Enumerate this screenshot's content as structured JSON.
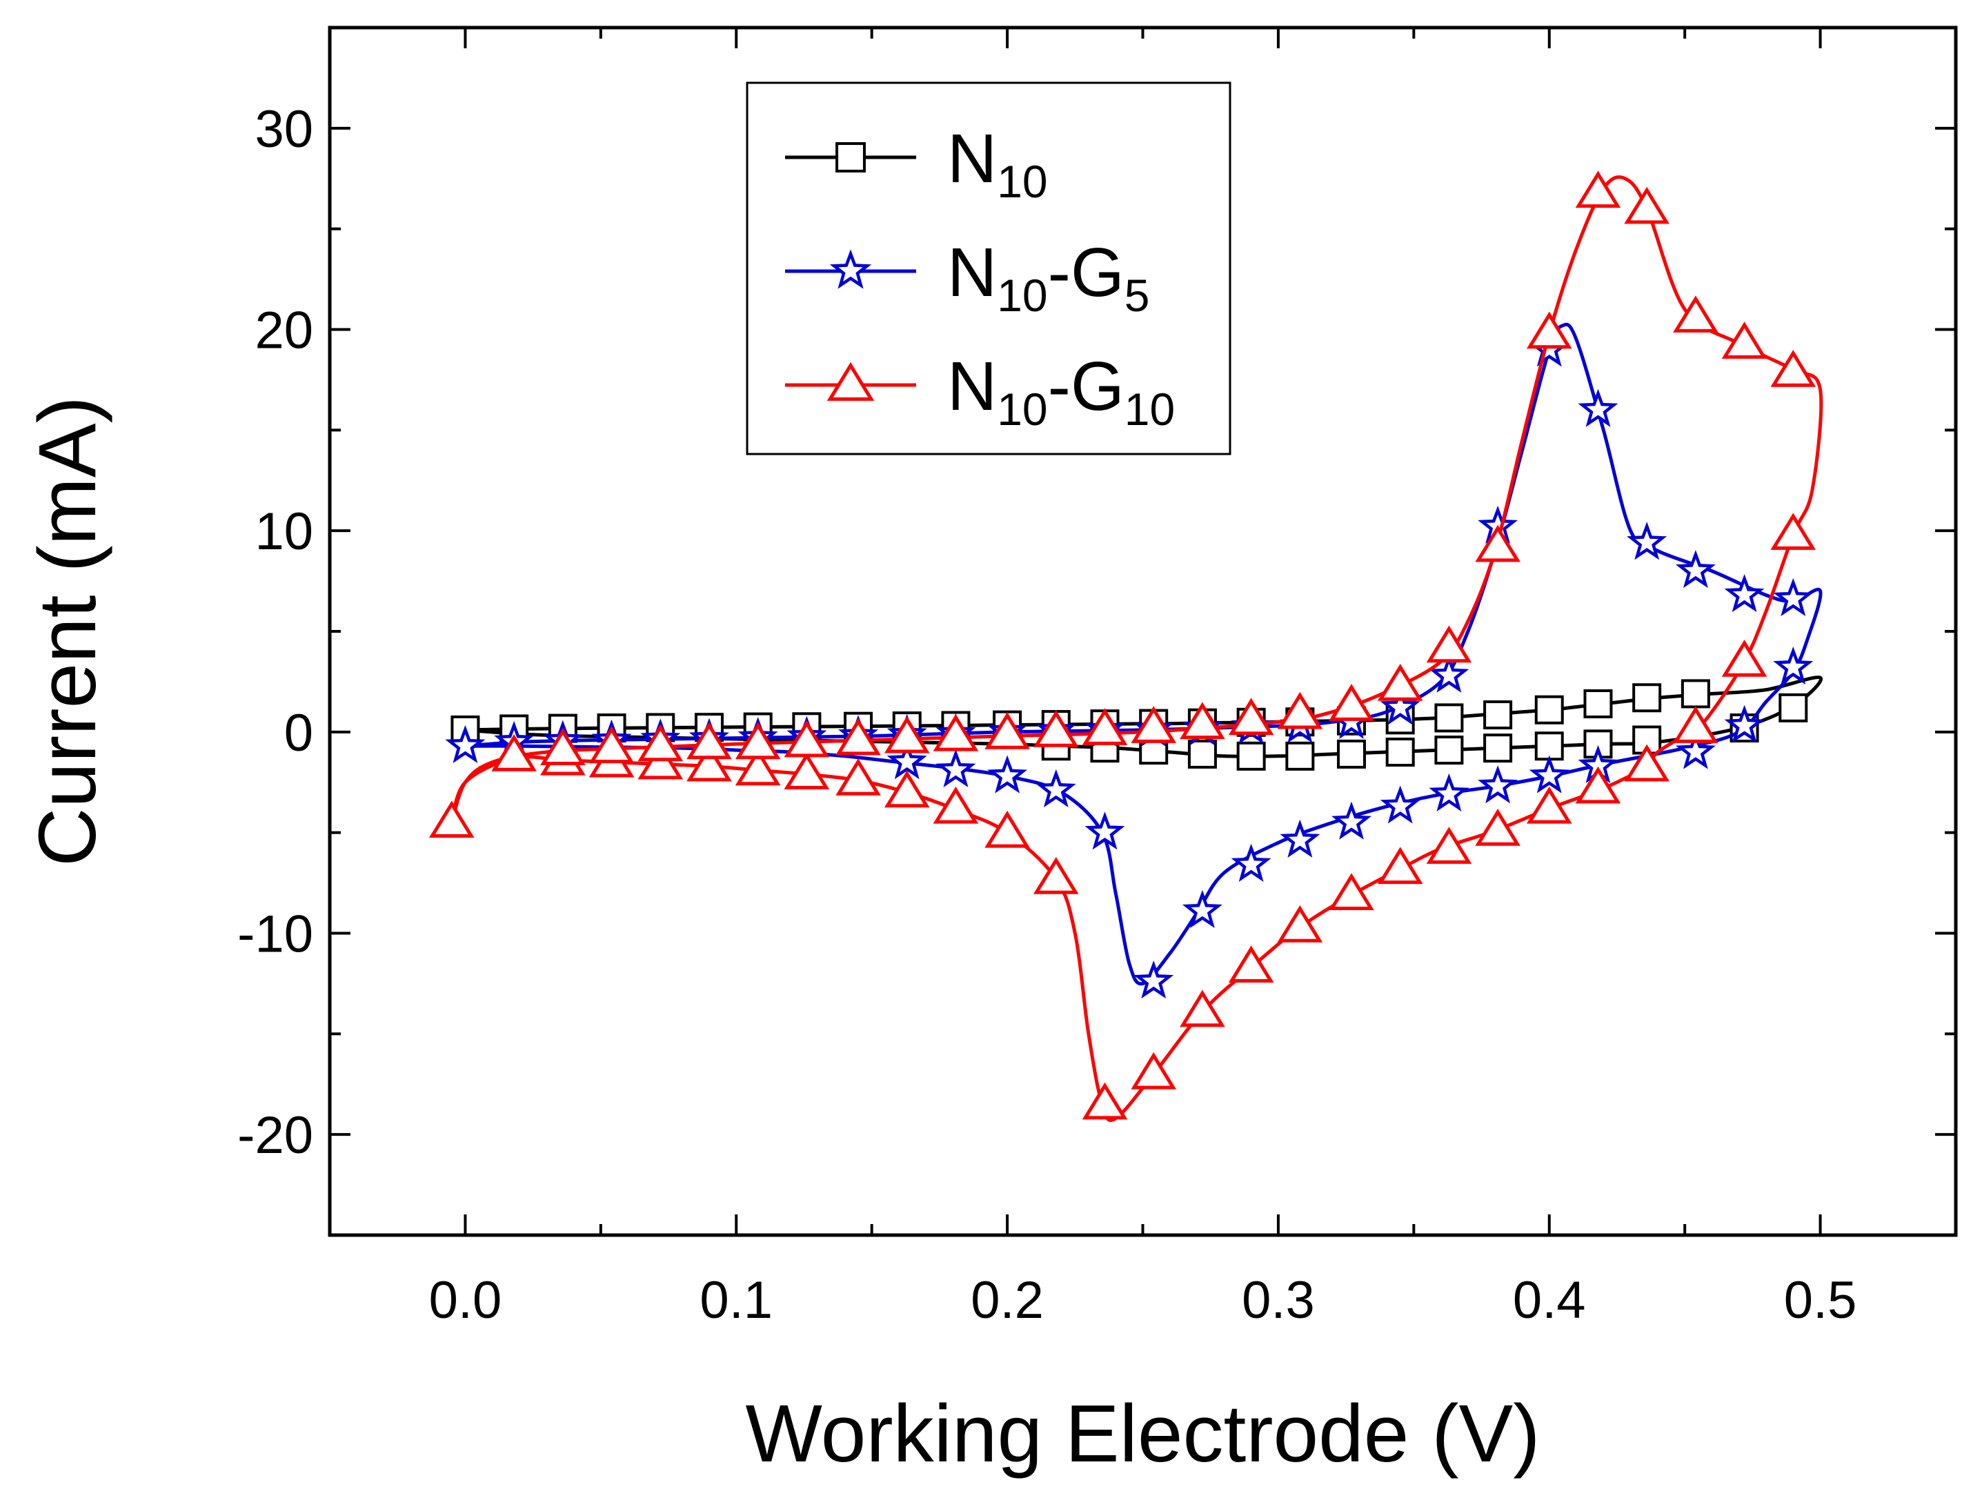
{
  "chart_data": {
    "type": "line",
    "title": "",
    "xlabel": "Working Electrode (V)",
    "ylabel": "Current (mA)",
    "xlim": [
      -0.05,
      0.55
    ],
    "ylim": [
      -25,
      35
    ],
    "xticks": [
      0.0,
      0.1,
      0.2,
      0.3,
      0.4,
      0.5
    ],
    "xtick_labels": [
      "0.0",
      "0.1",
      "0.2",
      "0.3",
      "0.4",
      "0.5"
    ],
    "yticks": [
      -20,
      -10,
      0,
      10,
      20,
      30
    ],
    "ytick_labels": [
      "-20",
      "-10",
      "0",
      "10",
      "20",
      "30"
    ],
    "grid": false,
    "legend_position": "top-center",
    "series": [
      {
        "name": "N10",
        "legend": {
          "base": "N",
          "sub1": "10",
          "mid": "",
          "sub2": ""
        },
        "color": "#000000",
        "marker": "square",
        "points": [
          [
            0.0,
            0.1
          ],
          [
            0.02,
            0.15
          ],
          [
            0.04,
            0.18
          ],
          [
            0.06,
            0.2
          ],
          [
            0.08,
            0.22
          ],
          [
            0.1,
            0.24
          ],
          [
            0.12,
            0.26
          ],
          [
            0.14,
            0.28
          ],
          [
            0.16,
            0.3
          ],
          [
            0.18,
            0.32
          ],
          [
            0.2,
            0.35
          ],
          [
            0.22,
            0.37
          ],
          [
            0.24,
            0.4
          ],
          [
            0.26,
            0.42
          ],
          [
            0.28,
            0.46
          ],
          [
            0.3,
            0.5
          ],
          [
            0.32,
            0.55
          ],
          [
            0.34,
            0.6
          ],
          [
            0.36,
            0.7
          ],
          [
            0.38,
            0.9
          ],
          [
            0.4,
            1.1
          ],
          [
            0.42,
            1.4
          ],
          [
            0.44,
            1.7
          ],
          [
            0.46,
            1.9
          ],
          [
            0.48,
            2.1
          ],
          [
            0.5,
            2.7
          ],
          [
            0.49,
            1.3
          ],
          [
            0.47,
            0.2
          ],
          [
            0.44,
            -0.5
          ],
          [
            0.42,
            -0.6
          ],
          [
            0.4,
            -0.7
          ],
          [
            0.38,
            -0.8
          ],
          [
            0.36,
            -0.9
          ],
          [
            0.34,
            -1.0
          ],
          [
            0.32,
            -1.1
          ],
          [
            0.3,
            -1.2
          ],
          [
            0.28,
            -1.2
          ],
          [
            0.26,
            -1.0
          ],
          [
            0.24,
            -0.8
          ],
          [
            0.22,
            -0.7
          ],
          [
            0.2,
            -0.6
          ],
          [
            0.18,
            -0.55
          ],
          [
            0.16,
            -0.5
          ],
          [
            0.14,
            -0.45
          ],
          [
            0.12,
            -0.4
          ],
          [
            0.1,
            -0.35
          ],
          [
            0.08,
            -0.3
          ],
          [
            0.06,
            -0.25
          ],
          [
            0.04,
            -0.2
          ],
          [
            0.02,
            -0.1
          ],
          [
            0.0,
            0.1
          ]
        ],
        "marker_points": [
          [
            0.0,
            0.1
          ],
          [
            0.018,
            0.15
          ],
          [
            0.036,
            0.18
          ],
          [
            0.054,
            0.2
          ],
          [
            0.072,
            0.22
          ],
          [
            0.09,
            0.23
          ],
          [
            0.108,
            0.25
          ],
          [
            0.126,
            0.26
          ],
          [
            0.145,
            0.28
          ],
          [
            0.163,
            0.3
          ],
          [
            0.181,
            0.32
          ],
          [
            0.2,
            0.35
          ],
          [
            0.218,
            0.37
          ],
          [
            0.236,
            0.4
          ],
          [
            0.254,
            0.42
          ],
          [
            0.272,
            0.45
          ],
          [
            0.29,
            0.48
          ],
          [
            0.308,
            0.5
          ],
          [
            0.327,
            0.55
          ],
          [
            0.345,
            0.6
          ],
          [
            0.363,
            0.7
          ],
          [
            0.381,
            0.85
          ],
          [
            0.4,
            1.1
          ],
          [
            0.418,
            1.4
          ],
          [
            0.436,
            1.7
          ],
          [
            0.454,
            1.9
          ],
          [
            0.49,
            1.2
          ],
          [
            0.472,
            0.2
          ],
          [
            0.436,
            -0.4
          ],
          [
            0.418,
            -0.6
          ],
          [
            0.4,
            -0.7
          ],
          [
            0.381,
            -0.8
          ],
          [
            0.363,
            -0.9
          ],
          [
            0.345,
            -1.0
          ],
          [
            0.327,
            -1.1
          ],
          [
            0.308,
            -1.2
          ],
          [
            0.29,
            -1.2
          ],
          [
            0.272,
            -1.1
          ],
          [
            0.254,
            -0.9
          ],
          [
            0.236,
            -0.8
          ],
          [
            0.218,
            -0.7
          ]
        ]
      },
      {
        "name": "N10-G5",
        "legend": {
          "base": "N",
          "sub1": "10",
          "mid": "-G",
          "sub2": "5"
        },
        "color": "#0000d8",
        "marker": "star",
        "points": [
          [
            0.0,
            -0.7
          ],
          [
            0.02,
            -0.5
          ],
          [
            0.05,
            -0.4
          ],
          [
            0.1,
            -0.3
          ],
          [
            0.15,
            -0.2
          ],
          [
            0.2,
            0.0
          ],
          [
            0.25,
            0.1
          ],
          [
            0.3,
            0.3
          ],
          [
            0.32,
            0.5
          ],
          [
            0.34,
            1.0
          ],
          [
            0.36,
            2.5
          ],
          [
            0.37,
            5.0
          ],
          [
            0.38,
            9.0
          ],
          [
            0.39,
            14.0
          ],
          [
            0.4,
            19.0
          ],
          [
            0.405,
            20.2
          ],
          [
            0.41,
            19.5
          ],
          [
            0.42,
            15.0
          ],
          [
            0.43,
            10.0
          ],
          [
            0.44,
            9.0
          ],
          [
            0.46,
            8.0
          ],
          [
            0.48,
            6.8
          ],
          [
            0.49,
            6.5
          ],
          [
            0.5,
            7.0
          ],
          [
            0.495,
            4.5
          ],
          [
            0.49,
            3.0
          ],
          [
            0.48,
            1.5
          ],
          [
            0.47,
            0.0
          ],
          [
            0.45,
            -0.8
          ],
          [
            0.42,
            -1.6
          ],
          [
            0.4,
            -2.2
          ],
          [
            0.38,
            -2.7
          ],
          [
            0.36,
            -3.1
          ],
          [
            0.34,
            -3.7
          ],
          [
            0.32,
            -4.5
          ],
          [
            0.3,
            -5.5
          ],
          [
            0.28,
            -7.0
          ],
          [
            0.27,
            -9.0
          ],
          [
            0.26,
            -11.0
          ],
          [
            0.25,
            -12.5
          ],
          [
            0.245,
            -11.5
          ],
          [
            0.24,
            -8.0
          ],
          [
            0.235,
            -5.0
          ],
          [
            0.22,
            -3.0
          ],
          [
            0.2,
            -2.2
          ],
          [
            0.18,
            -1.8
          ],
          [
            0.16,
            -1.5
          ],
          [
            0.14,
            -1.2
          ],
          [
            0.12,
            -1.0
          ],
          [
            0.1,
            -0.9
          ],
          [
            0.08,
            -0.8
          ],
          [
            0.05,
            -0.75
          ],
          [
            0.02,
            -0.7
          ],
          [
            0.0,
            -0.7
          ]
        ],
        "marker_points": [
          [
            0.0,
            -0.7
          ],
          [
            0.018,
            -0.5
          ],
          [
            0.036,
            -0.45
          ],
          [
            0.054,
            -0.42
          ],
          [
            0.072,
            -0.38
          ],
          [
            0.09,
            -0.35
          ],
          [
            0.108,
            -0.3
          ],
          [
            0.126,
            -0.25
          ],
          [
            0.145,
            -0.2
          ],
          [
            0.163,
            -0.15
          ],
          [
            0.181,
            -0.1
          ],
          [
            0.2,
            0.0
          ],
          [
            0.218,
            0.05
          ],
          [
            0.236,
            0.1
          ],
          [
            0.254,
            0.12
          ],
          [
            0.272,
            0.18
          ],
          [
            0.29,
            0.25
          ],
          [
            0.308,
            0.3
          ],
          [
            0.327,
            0.5
          ],
          [
            0.345,
            1.2
          ],
          [
            0.363,
            2.8
          ],
          [
            0.381,
            10.2
          ],
          [
            0.4,
            19.0
          ],
          [
            0.418,
            16.0
          ],
          [
            0.436,
            9.4
          ],
          [
            0.454,
            8.0
          ],
          [
            0.472,
            6.8
          ],
          [
            0.49,
            6.6
          ],
          [
            0.49,
            3.2
          ],
          [
            0.472,
            0.3
          ],
          [
            0.454,
            -1.0
          ],
          [
            0.418,
            -1.7
          ],
          [
            0.4,
            -2.2
          ],
          [
            0.381,
            -2.7
          ],
          [
            0.363,
            -3.1
          ],
          [
            0.345,
            -3.7
          ],
          [
            0.327,
            -4.5
          ],
          [
            0.308,
            -5.4
          ],
          [
            0.29,
            -6.6
          ],
          [
            0.272,
            -8.9
          ],
          [
            0.254,
            -12.4
          ],
          [
            0.236,
            -5.0
          ],
          [
            0.218,
            -2.9
          ],
          [
            0.2,
            -2.2
          ],
          [
            0.181,
            -1.9
          ],
          [
            0.163,
            -1.5
          ]
        ]
      },
      {
        "name": "N10-G10",
        "legend": {
          "base": "N",
          "sub1": "10",
          "mid": "-G",
          "sub2": "10"
        },
        "color": "#ff0000",
        "marker": "triangle",
        "points": [
          [
            -0.005,
            -4.5
          ],
          [
            0.0,
            -2.5
          ],
          [
            0.01,
            -1.5
          ],
          [
            0.03,
            -1.0
          ],
          [
            0.06,
            -0.8
          ],
          [
            0.1,
            -0.6
          ],
          [
            0.15,
            -0.4
          ],
          [
            0.2,
            -0.2
          ],
          [
            0.25,
            0.0
          ],
          [
            0.3,
            0.5
          ],
          [
            0.32,
            1.0
          ],
          [
            0.34,
            2.0
          ],
          [
            0.36,
            3.5
          ],
          [
            0.37,
            5.5
          ],
          [
            0.38,
            9.0
          ],
          [
            0.39,
            14.5
          ],
          [
            0.4,
            19.8
          ],
          [
            0.41,
            24.0
          ],
          [
            0.42,
            27.0
          ],
          [
            0.428,
            27.5
          ],
          [
            0.436,
            26.0
          ],
          [
            0.45,
            21.0
          ],
          [
            0.47,
            19.3
          ],
          [
            0.49,
            18.0
          ],
          [
            0.5,
            17.0
          ],
          [
            0.497,
            12.0
          ],
          [
            0.49,
            9.8
          ],
          [
            0.48,
            6.0
          ],
          [
            0.472,
            3.5
          ],
          [
            0.46,
            1.0
          ],
          [
            0.454,
            0.2
          ],
          [
            0.44,
            -1.0
          ],
          [
            0.436,
            -1.7
          ],
          [
            0.42,
            -2.8
          ],
          [
            0.4,
            -3.8
          ],
          [
            0.38,
            -4.9
          ],
          [
            0.36,
            -5.8
          ],
          [
            0.345,
            -6.8
          ],
          [
            0.327,
            -8.1
          ],
          [
            0.308,
            -9.7
          ],
          [
            0.29,
            -11.7
          ],
          [
            0.272,
            -13.9
          ],
          [
            0.254,
            -17.0
          ],
          [
            0.24,
            -19.2
          ],
          [
            0.235,
            -18.5
          ],
          [
            0.23,
            -15.0
          ],
          [
            0.225,
            -10.0
          ],
          [
            0.218,
            -7.3
          ],
          [
            0.2,
            -5.0
          ],
          [
            0.18,
            -3.8
          ],
          [
            0.163,
            -3.0
          ],
          [
            0.145,
            -2.4
          ],
          [
            0.126,
            -2.1
          ],
          [
            0.108,
            -1.9
          ],
          [
            0.09,
            -1.7
          ],
          [
            0.072,
            -1.6
          ],
          [
            0.054,
            -1.5
          ],
          [
            0.036,
            -1.4
          ],
          [
            0.018,
            -1.3
          ],
          [
            0.0,
            -2.5
          ],
          [
            -0.005,
            -4.5
          ]
        ],
        "marker_points": [
          [
            -0.005,
            -4.5
          ],
          [
            0.018,
            -1.2
          ],
          [
            0.036,
            -1.4
          ],
          [
            0.054,
            -1.5
          ],
          [
            0.072,
            -1.6
          ],
          [
            0.09,
            -1.7
          ],
          [
            0.108,
            -1.9
          ],
          [
            0.126,
            -2.1
          ],
          [
            0.145,
            -2.4
          ],
          [
            0.163,
            -3.0
          ],
          [
            0.181,
            -3.8
          ],
          [
            0.2,
            -5.0
          ],
          [
            0.218,
            -7.3
          ],
          [
            0.236,
            -18.5
          ],
          [
            0.254,
            -17.0
          ],
          [
            0.272,
            -13.9
          ],
          [
            0.29,
            -11.7
          ],
          [
            0.308,
            -9.7
          ],
          [
            0.327,
            -8.1
          ],
          [
            0.345,
            -6.8
          ],
          [
            0.363,
            -5.8
          ],
          [
            0.381,
            -4.9
          ],
          [
            0.4,
            -3.8
          ],
          [
            0.418,
            -2.8
          ],
          [
            0.436,
            -1.7
          ],
          [
            0.454,
            0.2
          ],
          [
            0.472,
            3.5
          ],
          [
            0.49,
            9.8
          ],
          [
            0.49,
            17.9
          ],
          [
            0.472,
            19.3
          ],
          [
            0.454,
            20.6
          ],
          [
            0.436,
            26.0
          ],
          [
            0.418,
            26.8
          ],
          [
            0.4,
            19.8
          ],
          [
            0.381,
            9.2
          ],
          [
            0.363,
            4.2
          ],
          [
            0.345,
            2.3
          ],
          [
            0.327,
            1.3
          ],
          [
            0.308,
            0.9
          ],
          [
            0.29,
            0.6
          ],
          [
            0.272,
            0.4
          ],
          [
            0.254,
            0.2
          ],
          [
            0.236,
            0.1
          ],
          [
            0.218,
            0.0
          ],
          [
            0.2,
            -0.1
          ],
          [
            0.181,
            -0.2
          ],
          [
            0.163,
            -0.3
          ],
          [
            0.145,
            -0.4
          ],
          [
            0.126,
            -0.5
          ],
          [
            0.108,
            -0.6
          ],
          [
            0.09,
            -0.6
          ],
          [
            0.072,
            -0.7
          ],
          [
            0.054,
            -0.8
          ],
          [
            0.036,
            -0.9
          ]
        ]
      }
    ]
  }
}
